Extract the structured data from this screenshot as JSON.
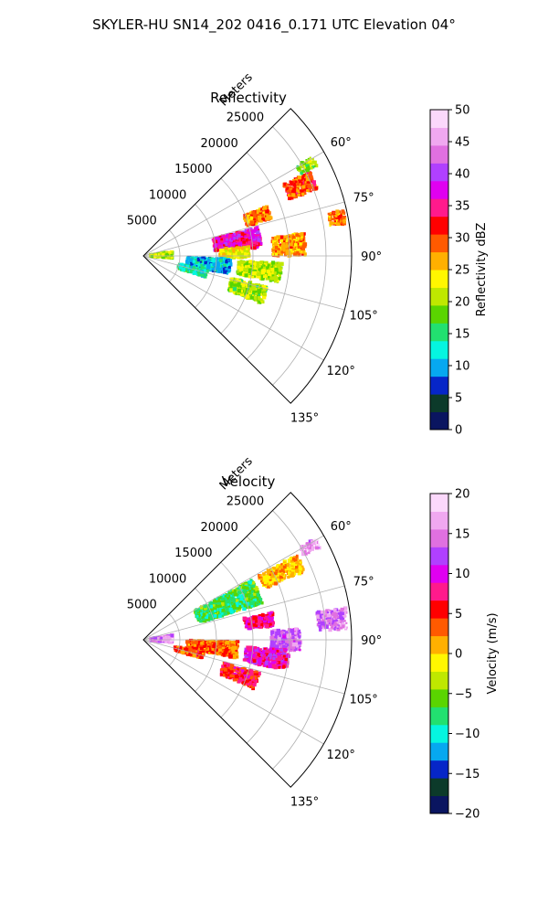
{
  "suptitle": "SKYLER-HU  SN14_202  0416_0.171 UTC Elevation 04°",
  "chart_data": [
    {
      "type": "heatmap",
      "projection": "polar sector (PPI)",
      "title": "Reflectivity",
      "radial_axis_label": "Meters",
      "radial_ticks": [
        "5000",
        "10000",
        "15000",
        "20000",
        "25000"
      ],
      "radial_tick_values": [
        5000,
        10000,
        15000,
        20000,
        25000
      ],
      "radial_max": 28500,
      "azimuth_ticks": [
        "60°",
        "75°",
        "90°",
        "105°",
        "120°",
        "135°"
      ],
      "azimuth_tick_values": [
        60,
        75,
        90,
        105,
        120,
        135
      ],
      "azimuth_range": [
        45,
        135
      ],
      "grid": true,
      "colorbar": {
        "label": "Reflectivity dBZ",
        "range": [
          0,
          50
        ],
        "ticks": [
          "0",
          "5",
          "10",
          "15",
          "20",
          "25",
          "30",
          "35",
          "40",
          "45",
          "50"
        ],
        "colors": [
          "#0a1560",
          "#0c3a2a",
          "#0626c8",
          "#06a8f0",
          "#05f5e0",
          "#22e070",
          "#5ad500",
          "#bfe800",
          "#fff700",
          "#ffb000",
          "#ff5a00",
          "#ff0000",
          "#ff1a8c",
          "#e000f0",
          "#b040ff",
          "#e070e0",
          "#f0a8f0",
          "#fbd8fb"
        ]
      },
      "echo_cells": [
        {
          "azimuth": 81,
          "range": 13000,
          "az_width": 10,
          "range_width": 6500,
          "value": 36
        },
        {
          "azimuth": 66,
          "range": 23500,
          "az_width": 6,
          "range_width": 4000,
          "value": 30
        },
        {
          "azimuth": 71,
          "range": 16500,
          "az_width": 6,
          "range_width": 3500,
          "value": 28
        },
        {
          "azimuth": 86,
          "range": 20000,
          "az_width": 8,
          "range_width": 4500,
          "value": 27
        },
        {
          "azimuth": 79,
          "range": 27000,
          "az_width": 4,
          "range_width": 2200,
          "value": 28
        },
        {
          "azimuth": 88,
          "range": 12500,
          "az_width": 6,
          "range_width": 4000,
          "value": 24
        },
        {
          "azimuth": 97,
          "range": 16000,
          "az_width": 8,
          "range_width": 6000,
          "value": 21
        },
        {
          "azimuth": 108,
          "range": 15000,
          "az_width": 8,
          "range_width": 5000,
          "value": 20
        },
        {
          "azimuth": 97,
          "range": 9000,
          "az_width": 10,
          "range_width": 6000,
          "value": 11
        },
        {
          "azimuth": 106,
          "range": 7000,
          "az_width": 6,
          "range_width": 4000,
          "value": 13
        },
        {
          "azimuth": 88,
          "range": 2500,
          "az_width": 12,
          "range_width": 3000,
          "value": 21
        },
        {
          "azimuth": 61,
          "range": 25500,
          "az_width": 3,
          "range_width": 2500,
          "value": 19
        }
      ]
    },
    {
      "type": "heatmap",
      "projection": "polar sector (PPI)",
      "title": "Velocity",
      "radial_axis_label": "Meters",
      "radial_ticks": [
        "5000",
        "10000",
        "15000",
        "20000",
        "25000"
      ],
      "radial_tick_values": [
        5000,
        10000,
        15000,
        20000,
        25000
      ],
      "radial_max": 28500,
      "azimuth_ticks": [
        "60°",
        "75°",
        "90°",
        "105°",
        "120°",
        "135°"
      ],
      "azimuth_tick_values": [
        60,
        75,
        90,
        105,
        120,
        135
      ],
      "azimuth_range": [
        45,
        135
      ],
      "grid": true,
      "colorbar": {
        "label": "Velocity (m/s)",
        "range": [
          -20,
          20
        ],
        "ticks": [
          "−20",
          "−15",
          "−10",
          "−5",
          "0",
          "5",
          "10",
          "15",
          "20"
        ],
        "colors": [
          "#0a1560",
          "#0c3a2a",
          "#0626c8",
          "#06a8f0",
          "#05f5e0",
          "#22e070",
          "#5ad500",
          "#bfe800",
          "#fff700",
          "#ffb000",
          "#ff5a00",
          "#ff0000",
          "#ff1a8c",
          "#e000f0",
          "#b040ff",
          "#e070e0",
          "#f0a8f0",
          "#fbd8fb"
        ]
      },
      "echo_cells": [
        {
          "azimuth": 67,
          "range": 12500,
          "az_width": 12,
          "range_width": 9000,
          "value": -7
        },
        {
          "azimuth": 64,
          "range": 21000,
          "az_width": 6,
          "range_width": 6000,
          "value": 1
        },
        {
          "azimuth": 81,
          "range": 16000,
          "az_width": 6,
          "range_width": 4000,
          "value": 8
        },
        {
          "azimuth": 90,
          "range": 19500,
          "az_width": 8,
          "range_width": 4000,
          "value": 14
        },
        {
          "azimuth": 84,
          "range": 26000,
          "az_width": 6,
          "range_width": 4000,
          "value": 15
        },
        {
          "azimuth": 98,
          "range": 17000,
          "az_width": 8,
          "range_width": 6000,
          "value": 9
        },
        {
          "azimuth": 96,
          "range": 9500,
          "az_width": 10,
          "range_width": 7000,
          "value": 3
        },
        {
          "azimuth": 110,
          "range": 14000,
          "az_width": 8,
          "range_width": 5000,
          "value": 6
        },
        {
          "azimuth": 105,
          "range": 6500,
          "az_width": 6,
          "range_width": 4000,
          "value": 4
        },
        {
          "azimuth": 88,
          "range": 2500,
          "az_width": 14,
          "range_width": 3000,
          "value": 15
        },
        {
          "azimuth": 61,
          "range": 26000,
          "az_width": 3,
          "range_width": 2500,
          "value": 16
        }
      ]
    }
  ]
}
